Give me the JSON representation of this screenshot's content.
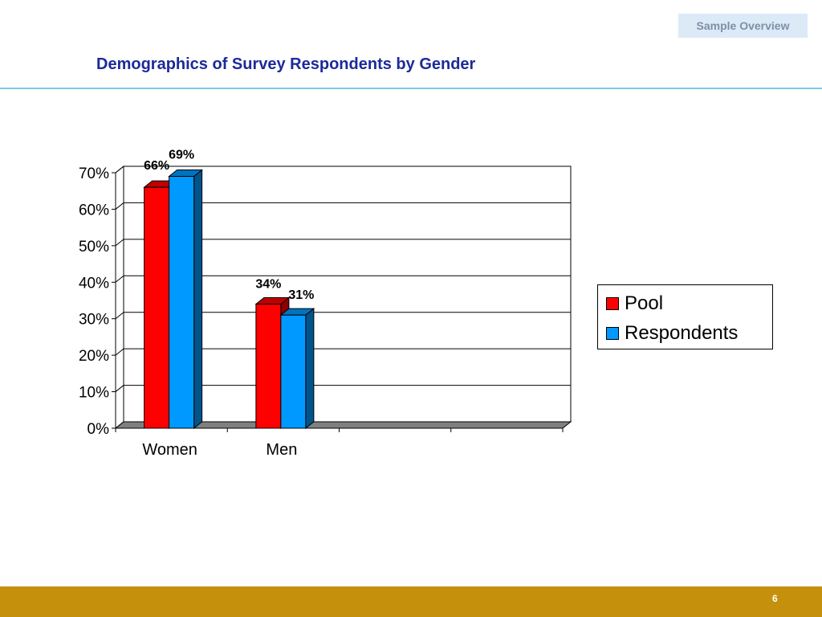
{
  "header": {
    "tag": "Sample Overview",
    "title": "Demographics of Survey Respondents by Gender"
  },
  "colors": {
    "pool": "#ff0000",
    "respondents": "#0099ff",
    "title": "#1c2a99",
    "footer": "#c5900c",
    "rule": "#7fc7e8"
  },
  "chart_data": {
    "type": "bar",
    "style": "3d-clustered",
    "categories": [
      "Women",
      "Men",
      "",
      ""
    ],
    "series": [
      {
        "name": "Pool",
        "values": [
          66,
          34,
          null,
          null
        ],
        "labels": [
          "66%",
          "34%",
          "",
          ""
        ]
      },
      {
        "name": "Respondents",
        "values": [
          69,
          31,
          null,
          null
        ],
        "labels": [
          "69%",
          "31%",
          "",
          ""
        ]
      }
    ],
    "y_ticks": [
      "0%",
      "10%",
      "20%",
      "30%",
      "40%",
      "50%",
      "60%",
      "70%"
    ],
    "ylim": [
      0,
      70
    ],
    "grid": true,
    "legend": "right"
  },
  "footer": {
    "page_number": "6"
  }
}
